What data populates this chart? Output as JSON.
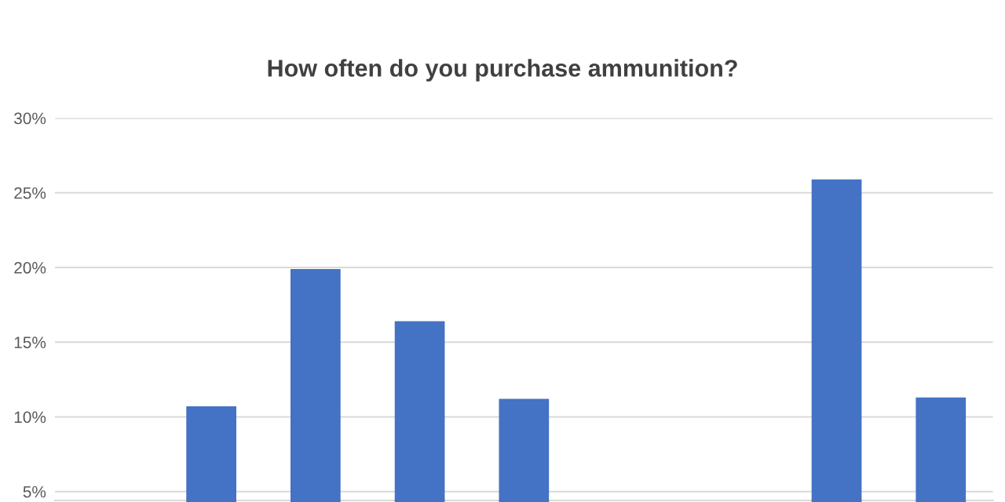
{
  "chart_data": {
    "type": "bar",
    "title": "How often do you purchase ammunition?",
    "categories": [
      null,
      null,
      null,
      null,
      null,
      null,
      null,
      null,
      null
    ],
    "values": [
      null,
      10.7,
      19.9,
      16.4,
      11.2,
      null,
      null,
      25.9,
      11.3
    ],
    "color": "#4472c4",
    "ylim": [
      4.3,
      30
    ],
    "yticks": [
      {
        "value": 5,
        "label": "5%"
      },
      {
        "value": 10,
        "label": "10%"
      },
      {
        "value": 15,
        "label": "15%"
      },
      {
        "value": 20,
        "label": "20%"
      },
      {
        "value": 25,
        "label": "25%"
      },
      {
        "value": 30,
        "label": "30%"
      }
    ],
    "grid": "y"
  }
}
